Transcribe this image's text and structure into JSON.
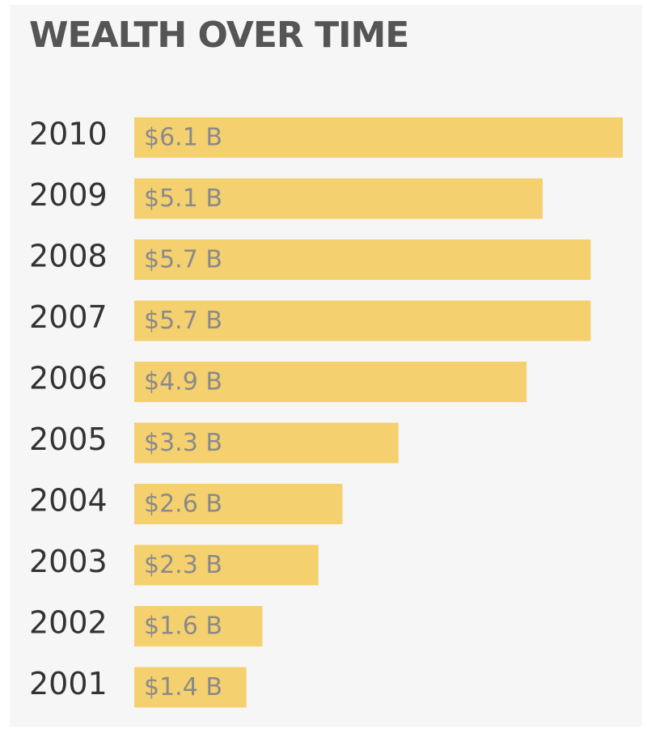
{
  "chart_data": {
    "type": "bar",
    "orientation": "horizontal",
    "title": "WEALTH OVER TIME",
    "categories": [
      "2010",
      "2009",
      "2008",
      "2007",
      "2006",
      "2005",
      "2004",
      "2003",
      "2002",
      "2001"
    ],
    "values": [
      6.1,
      5.1,
      5.7,
      5.7,
      4.9,
      3.3,
      2.6,
      2.3,
      1.6,
      1.4
    ],
    "value_labels": [
      "$6.1 B",
      "$5.1 B",
      "$5.7 B",
      "$5.7 B",
      "$4.9 B",
      "$3.3 B",
      "$2.6 B",
      "$2.3 B",
      "$1.6 B",
      "$1.4 B"
    ],
    "unit": "$ B",
    "xlim": [
      0,
      6.1
    ],
    "grid": false,
    "legend": "none",
    "colors": {
      "bar": "#f5d06f",
      "background": "#f6f6f6",
      "title": "#555555",
      "year_label": "#333333",
      "value_label": "#8a8a8a"
    }
  }
}
